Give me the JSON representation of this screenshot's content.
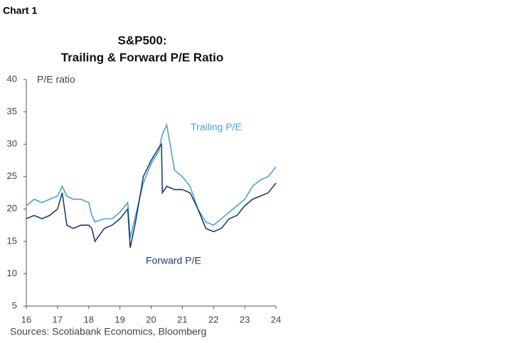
{
  "chart_label": "Chart 1",
  "chart_data": {
    "type": "line",
    "title": [
      "S&P500:",
      "Trailing & Forward P/E Ratio"
    ],
    "y_label": "P/E ratio",
    "source": "Sources: Scotiabank Economics, Bloomberg",
    "x": [
      16,
      16.25,
      16.5,
      16.75,
      17,
      17.15,
      17.3,
      17.5,
      17.75,
      18,
      18.1,
      18.2,
      18.5,
      18.75,
      19,
      19.25,
      19.33,
      19.5,
      19.75,
      20,
      20.25,
      20.33,
      20.36,
      20.5,
      20.75,
      21,
      21.25,
      21.5,
      21.75,
      22,
      22.25,
      22.5,
      22.75,
      23,
      23.25,
      23.5,
      23.75,
      24
    ],
    "series": [
      {
        "name": "Trailing P/E",
        "color": "#4aa3d9",
        "values": [
          20.5,
          21.5,
          21,
          21.5,
          22,
          23.5,
          22,
          21.5,
          21.5,
          21,
          19,
          18,
          18.5,
          18.5,
          19.5,
          21,
          15.5,
          19,
          24,
          27,
          29,
          31,
          31.5,
          33,
          26,
          25,
          23.5,
          20,
          18,
          17.5,
          18.5,
          19.5,
          20.5,
          21.5,
          23.5,
          24.5,
          25,
          26.5
        ]
      },
      {
        "name": "Forward P/E",
        "color": "#1f3d73",
        "values": [
          18.5,
          19,
          18.5,
          19,
          20,
          22.5,
          17.5,
          17,
          17.5,
          17.5,
          17,
          15,
          17,
          17.5,
          18.5,
          20,
          14,
          18,
          25,
          27.5,
          29.5,
          30,
          22.5,
          23.5,
          23,
          23,
          22.5,
          20,
          17,
          16.5,
          17,
          18.5,
          19,
          20.5,
          21.5,
          22,
          22.5,
          24
        ]
      }
    ],
    "xlim": [
      16,
      24
    ],
    "xticks": [
      16,
      17,
      18,
      19,
      20,
      21,
      22,
      23,
      24
    ],
    "ylim": [
      5,
      40
    ],
    "yticks": [
      5,
      10,
      15,
      20,
      25,
      30,
      35,
      40
    ],
    "grid": false
  }
}
